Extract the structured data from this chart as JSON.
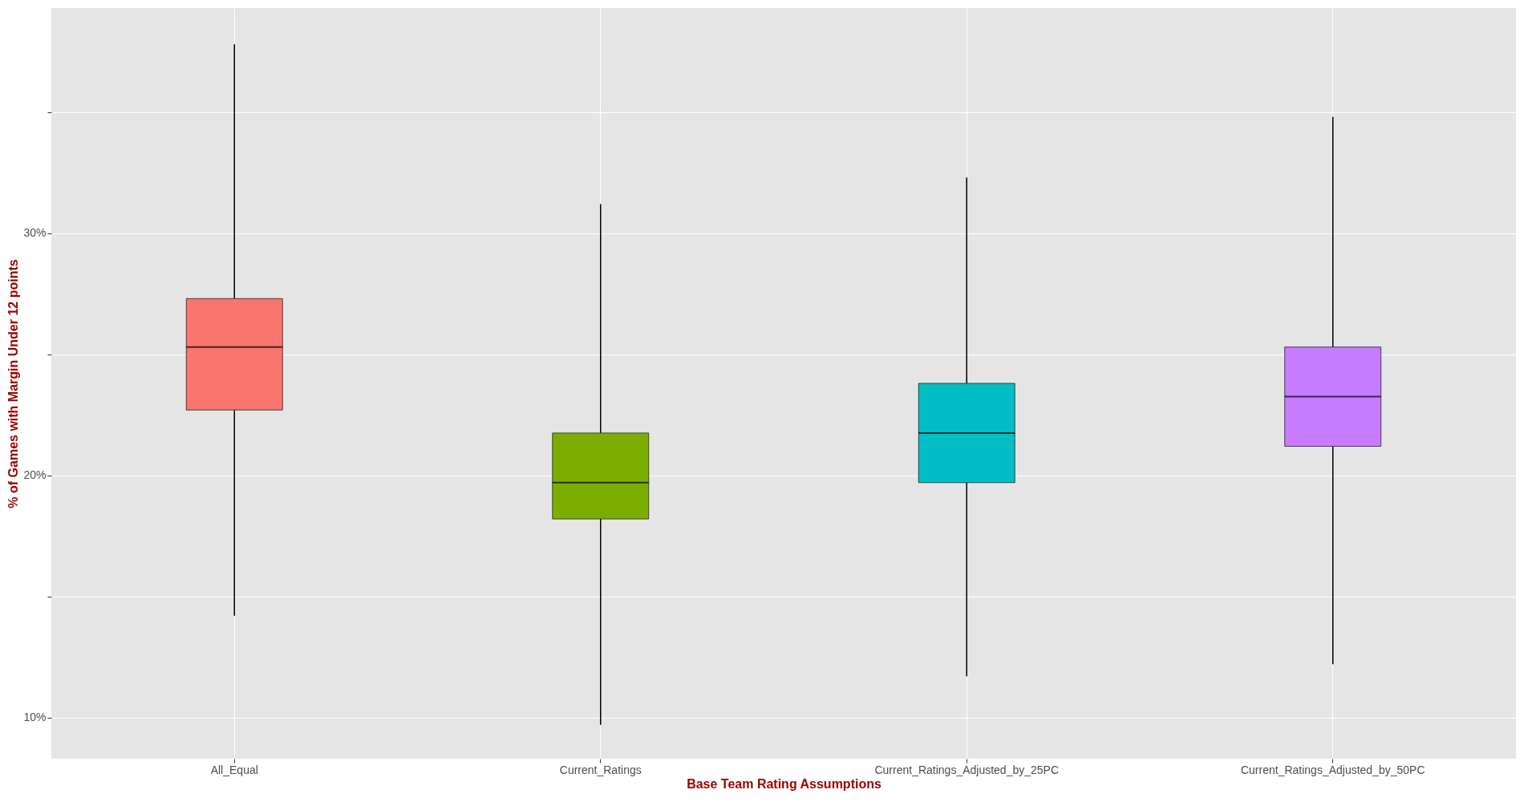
{
  "chart_data": {
    "type": "box",
    "xlabel": "Base Team Rating Assumptions",
    "ylabel": "% of Games with Margin Under 12 points",
    "categories": [
      "All_Equal",
      "Current_Ratings",
      "Current_Ratings_Adjusted_by_25PC",
      "Current_Ratings_Adjusted_by_50PC"
    ],
    "colors": [
      "#f8766d",
      "#7cae00",
      "#00bfc4",
      "#c77cff"
    ],
    "boxes": [
      {
        "low": 14.2,
        "q1": 22.7,
        "median": 25.3,
        "q3": 27.3,
        "high": 37.8
      },
      {
        "low": 9.7,
        "q1": 18.2,
        "median": 19.7,
        "q3": 21.75,
        "high": 31.2
      },
      {
        "low": 11.7,
        "q1": 19.7,
        "median": 21.75,
        "q3": 23.8,
        "high": 32.3
      },
      {
        "low": 12.2,
        "q1": 21.2,
        "median": 23.25,
        "q3": 25.3,
        "high": 34.8
      }
    ],
    "ylim": [
      8.3,
      39.3
    ],
    "yticks": [
      {
        "value": 10,
        "label": "10%"
      },
      {
        "value": 15,
        "label": null
      },
      {
        "value": 20,
        "label": "20%"
      },
      {
        "value": 25,
        "label": null
      },
      {
        "value": 30,
        "label": "30%"
      },
      {
        "value": 35,
        "label": null
      }
    ],
    "grid": true,
    "legend": false
  }
}
